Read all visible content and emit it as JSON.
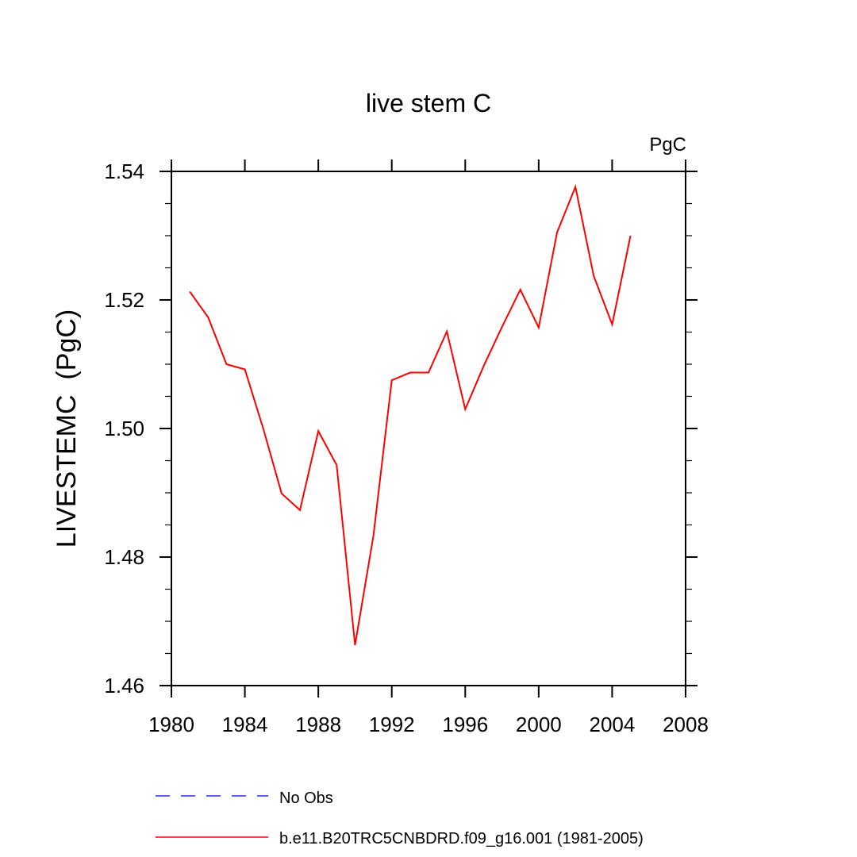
{
  "chart_data": {
    "type": "line",
    "title": "live stem C",
    "units_label": "PgC",
    "xlabel": "",
    "ylabel": "LIVESTEMC  (PgC)",
    "xlim": [
      1980,
      2008
    ],
    "ylim": [
      1.46,
      1.54
    ],
    "x_ticks": [
      1980,
      1984,
      1988,
      1992,
      1996,
      2000,
      2004,
      2008
    ],
    "x_tick_labels": [
      "1980",
      "1984",
      "1988",
      "1992",
      "1996",
      "2000",
      "2004",
      "2008"
    ],
    "y_ticks": [
      1.46,
      1.48,
      1.5,
      1.52,
      1.54
    ],
    "y_tick_labels": [
      "1.46",
      "1.48",
      "1.50",
      "1.52",
      "1.54"
    ],
    "grid": false,
    "series": [
      {
        "name": "b.e11.B20TRC5CNBDRD.f09_g16.001 (1981-2005)",
        "color": "#ff0000",
        "style": "solid",
        "x": [
          1981,
          1982,
          1983,
          1984,
          1985,
          1986,
          1987,
          1988,
          1989,
          1990,
          1991,
          1992,
          1993,
          1994,
          1995,
          1996,
          1997,
          1998,
          1999,
          2000,
          2001,
          2002,
          2003,
          2004,
          2005
        ],
        "values": [
          1.5213,
          1.5173,
          1.51,
          1.5092,
          1.5,
          1.4899,
          1.4873,
          1.4996,
          1.4943,
          1.4663,
          1.4833,
          1.5075,
          1.5087,
          1.5087,
          1.5151,
          1.503,
          1.5097,
          1.5158,
          1.5216,
          1.5157,
          1.5305,
          1.5376,
          1.5237,
          1.5162,
          1.53
        ]
      }
    ],
    "legend": {
      "placement": "bottom",
      "entries": [
        {
          "label": "No Obs",
          "color": "#0000ff",
          "style": "dashed"
        },
        {
          "label": "b.e11.B20TRC5CNBDRD.f09_g16.001 (1981-2005)",
          "color": "#ff0000",
          "style": "solid"
        }
      ]
    }
  }
}
